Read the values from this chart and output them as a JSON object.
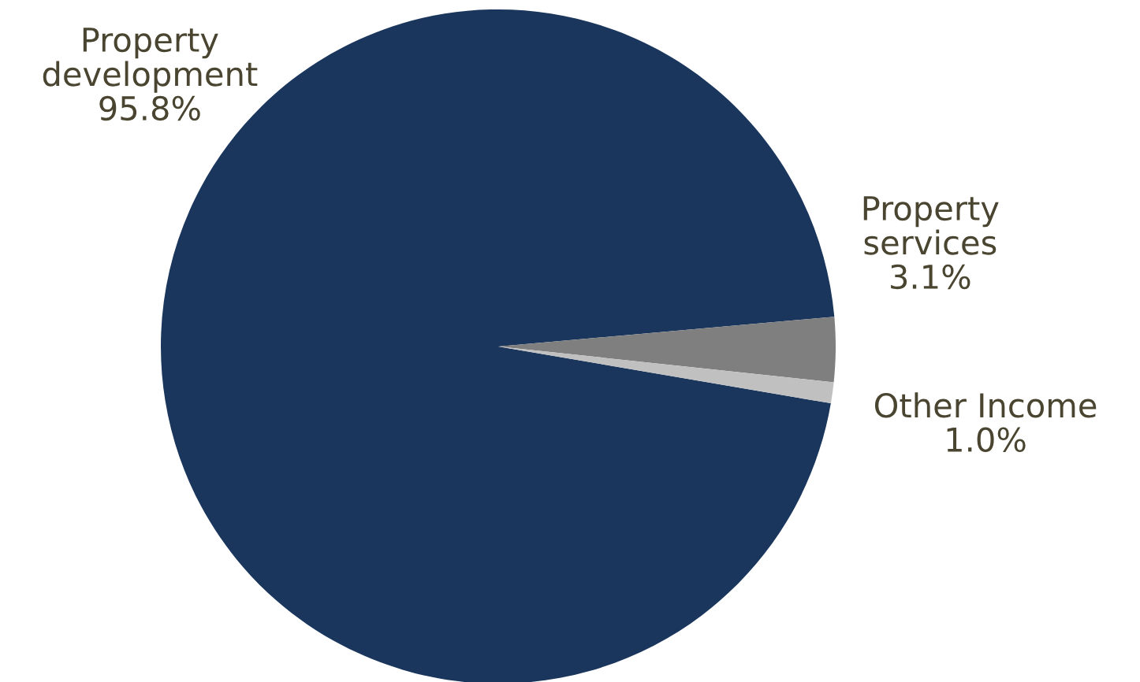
{
  "chart_data": {
    "type": "pie",
    "categories": [
      "Property\ndevelopment",
      "Property\nservices",
      "Other Income"
    ],
    "values": [
      95.8,
      3.1,
      1.0
    ],
    "value_labels": [
      "95.8%",
      "3.1%",
      "1.0%"
    ],
    "colors": [
      "#1a365d",
      "#7f7f7f",
      "#c0c0c0"
    ],
    "legend": false
  }
}
